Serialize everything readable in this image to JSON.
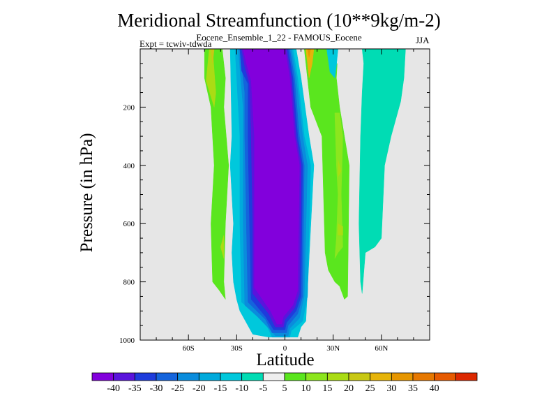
{
  "title": "Meridional Streamfunction (10**9kg/m-2)",
  "subtitle": "Eocene_Ensemble_1_22 - FAMOUS_Eocene",
  "expt_label": "Expt = tcwiv-tdwda",
  "season": "JJA",
  "colors": {
    "background_field": "#e6e6e6",
    "levels": [
      "#8200dc",
      "#5a14dc",
      "#1e3cdc",
      "#1464dc",
      "#0a8cdc",
      "#00aadc",
      "#00c8dc",
      "#00dcb4",
      "#eeeeee",
      "#5ae61e",
      "#8ce61e",
      "#aadc14",
      "#c8c814",
      "#e6b40a",
      "#e69600",
      "#e67800",
      "#e65a00",
      "#dc2800"
    ]
  },
  "chart_data": {
    "type": "contour",
    "title": "Meridional Streamfunction (10**9kg/m-2)",
    "xlabel": "Latitude",
    "ylabel": "Pressure (in hPa)",
    "xlim": [
      -90,
      90
    ],
    "ylim": [
      1000,
      0
    ],
    "xticks": [
      {
        "value": -60,
        "label": "60S"
      },
      {
        "value": -30,
        "label": "30S"
      },
      {
        "value": 0,
        "label": "0"
      },
      {
        "value": 30,
        "label": "30N"
      },
      {
        "value": 60,
        "label": "60N"
      }
    ],
    "yticks": [
      {
        "value": 200,
        "label": "200"
      },
      {
        "value": 400,
        "label": "400"
      },
      {
        "value": 600,
        "label": "600"
      },
      {
        "value": 800,
        "label": "800"
      },
      {
        "value": 1000,
        "label": "1000"
      }
    ],
    "colorbar_labels": [
      "-40",
      "-35",
      "-30",
      "-25",
      "-20",
      "-15",
      "-10",
      "-5",
      "5",
      "10",
      "15",
      "20",
      "25",
      "30",
      "35",
      "40"
    ],
    "regions": [
      {
        "name": "NH cell",
        "pts": [
          [
            4,
            968
          ],
          [
            11,
            935
          ],
          [
            14,
            850
          ],
          [
            16,
            400
          ],
          [
            12,
            300
          ],
          [
            8,
            100
          ],
          [
            5,
            0
          ],
          [
            -16,
            0
          ],
          [
            -16,
            100
          ],
          [
            -21,
            200
          ],
          [
            -24,
            400
          ],
          [
            -26,
            600
          ],
          [
            -27,
            870
          ],
          [
            -20,
            900
          ],
          [
            -11,
            953
          ],
          [
            -8,
            990
          ],
          [
            3,
            990
          ]
        ],
        "level": 6
      },
      {
        "name": "SH lobe",
        "pts": [
          [
            -39,
            0
          ],
          [
            -37,
            100
          ],
          [
            -38,
            200
          ],
          [
            -35,
            400
          ],
          [
            -37,
            600
          ],
          [
            -38,
            800
          ],
          [
            -37,
            860
          ],
          [
            -41,
            828
          ],
          [
            -45,
            800
          ],
          [
            -46,
            600
          ],
          [
            -44,
            400
          ],
          [
            -46,
            200
          ],
          [
            -50,
            100
          ],
          [
            -50,
            0
          ]
        ],
        "level": 9
      },
      {
        "name": "SH lobe",
        "pts": [
          [
            -45,
            0
          ],
          [
            -43,
            150
          ],
          [
            -44,
            200
          ],
          [
            -49,
            110
          ],
          [
            -47,
            0
          ]
        ],
        "level": 11
      },
      {
        "name": "SH lobe",
        "pts": [
          [
            -38,
            640
          ],
          [
            -38,
            720
          ],
          [
            -40,
            680
          ]
        ],
        "level": 11
      },
      {
        "name": "SH lobe",
        "pts": [
          [
            -44,
            0
          ],
          [
            -45,
            50
          ],
          [
            -46,
            0
          ]
        ],
        "level": 12
      },
      {
        "name": "SH lobe",
        "pts": [
          [
            -34,
            0
          ],
          [
            -33,
            300
          ],
          [
            -34,
            400
          ],
          [
            -32,
            600
          ],
          [
            -33,
            700
          ],
          [
            -32,
            800
          ],
          [
            -30,
            860
          ],
          [
            -28,
            900
          ],
          [
            -20,
            980
          ],
          [
            -10,
            990
          ],
          [
            8,
            990
          ],
          [
            10,
            955
          ],
          [
            13,
            935
          ],
          [
            18,
            400
          ],
          [
            15,
            300
          ],
          [
            10,
            100
          ],
          [
            7,
            0
          ]
        ],
        "level": 6
      },
      {
        "name": "SH lobe",
        "pts": [
          [
            -31,
            0
          ],
          [
            -28,
            300
          ],
          [
            -28,
            600
          ],
          [
            -27,
            870
          ],
          [
            -20,
            900
          ],
          [
            -11,
            953
          ],
          [
            -8,
            990
          ],
          [
            3,
            990
          ],
          [
            4,
            968
          ],
          [
            11,
            935
          ],
          [
            14,
            850
          ],
          [
            16,
            400
          ],
          [
            12,
            300
          ],
          [
            8,
            100
          ],
          [
            5,
            0
          ]
        ],
        "level": 5
      },
      {
        "name": "SH lobe",
        "pts": [
          [
            -29,
            0
          ],
          [
            -26,
            200
          ],
          [
            -26,
            600
          ],
          [
            -25,
            880
          ],
          [
            -17,
            920
          ],
          [
            -10,
            960
          ],
          [
            -6,
            985
          ],
          [
            2,
            985
          ],
          [
            3,
            960
          ],
          [
            9,
            925
          ],
          [
            12,
            850
          ],
          [
            14,
            400
          ],
          [
            11,
            300
          ],
          [
            7,
            100
          ],
          [
            4,
            0
          ]
        ],
        "level": 4
      },
      {
        "name": "SH lobe",
        "pts": [
          [
            -28,
            0
          ],
          [
            -25,
            150
          ],
          [
            -25,
            300
          ],
          [
            -24,
            600
          ],
          [
            -23,
            870
          ],
          [
            -12,
            930
          ],
          [
            -8,
            975
          ],
          [
            1,
            975
          ],
          [
            2,
            950
          ],
          [
            8,
            910
          ],
          [
            11,
            850
          ],
          [
            12,
            400
          ],
          [
            9,
            300
          ],
          [
            6,
            100
          ],
          [
            3,
            0
          ]
        ],
        "level": 3
      },
      {
        "name": "SH lobe",
        "pts": [
          [
            -28,
            0
          ],
          [
            -27,
            75
          ],
          [
            -23,
            120
          ],
          [
            -23,
            300
          ],
          [
            -22,
            600
          ],
          [
            -21,
            860
          ],
          [
            -12,
            920
          ],
          [
            -7,
            965
          ],
          [
            0,
            965
          ],
          [
            1,
            940
          ],
          [
            7,
            900
          ],
          [
            10,
            850
          ],
          [
            11,
            400
          ],
          [
            8,
            300
          ],
          [
            5,
            100
          ],
          [
            2,
            0
          ]
        ],
        "level": 2
      },
      {
        "name": "SH lobe",
        "pts": [
          [
            -27,
            0
          ],
          [
            -25,
            60
          ],
          [
            -22,
            120
          ],
          [
            -21,
            300
          ],
          [
            -20,
            600
          ],
          [
            -20,
            840
          ],
          [
            -10,
            910
          ],
          [
            -6,
            955
          ],
          [
            -1,
            955
          ],
          [
            0,
            930
          ],
          [
            6,
            890
          ],
          [
            9,
            840
          ],
          [
            10,
            400
          ],
          [
            7,
            300
          ],
          [
            4,
            100
          ],
          [
            1,
            0
          ]
        ],
        "level": 1
      },
      {
        "name": "SH lobe",
        "pts": [
          [
            -26,
            0
          ],
          [
            -24,
            50
          ],
          [
            -21,
            110
          ],
          [
            -19,
            300
          ],
          [
            -19,
            600
          ],
          [
            -19,
            820
          ],
          [
            -9,
            900
          ],
          [
            -5,
            945
          ],
          [
            -2,
            945
          ],
          [
            -1,
            920
          ],
          [
            5,
            880
          ],
          [
            8,
            830
          ],
          [
            9,
            400
          ],
          [
            6,
            300
          ],
          [
            3,
            100
          ],
          [
            0,
            0
          ]
        ],
        "level": 0
      },
      {
        "name": "NH lobe",
        "pts": [
          [
            12,
            0
          ],
          [
            14,
            100
          ],
          [
            16,
            200
          ],
          [
            23,
            300
          ],
          [
            24,
            500
          ],
          [
            25,
            700
          ],
          [
            27,
            760
          ],
          [
            31,
            800
          ],
          [
            34,
            815
          ],
          [
            37,
            860
          ],
          [
            39,
            850
          ],
          [
            40,
            400
          ],
          [
            34,
            200
          ],
          [
            32,
            100
          ],
          [
            33,
            0
          ]
        ],
        "level": 9
      },
      {
        "name": "NH lobe",
        "pts": [
          [
            28,
            0
          ],
          [
            29,
            40
          ],
          [
            31,
            60
          ],
          [
            33,
            45
          ],
          [
            33,
            0
          ]
        ],
        "level": 8
      },
      {
        "name": "NH lobe",
        "pts": [
          [
            26,
            0
          ],
          [
            28,
            80
          ],
          [
            31,
            100
          ],
          [
            32,
            60
          ],
          [
            33,
            0
          ]
        ],
        "level": 6
      },
      {
        "name": "NH lobe",
        "pts": [
          [
            31,
            220
          ],
          [
            32,
            400
          ],
          [
            33,
            500
          ],
          [
            32,
            650
          ],
          [
            31,
            720
          ],
          [
            33,
            700
          ],
          [
            36,
            680
          ],
          [
            35,
            500
          ],
          [
            36,
            300
          ],
          [
            34,
            220
          ]
        ],
        "level": 10
      },
      {
        "name": "NH lobe",
        "pts": [
          [
            33,
            380
          ],
          [
            33,
            440
          ],
          [
            35,
            420
          ]
        ],
        "level": 11
      },
      {
        "name": "NH lobe",
        "pts": [
          [
            33,
            600
          ],
          [
            33,
            640
          ],
          [
            36,
            640
          ],
          [
            36,
            610
          ]
        ],
        "level": 11
      },
      {
        "name": "NH lobe",
        "pts": [
          [
            13,
            0
          ],
          [
            14,
            50
          ],
          [
            15,
            100
          ],
          [
            17,
            50
          ],
          [
            18,
            0
          ]
        ],
        "level": 13
      },
      {
        "name": "NH lobe",
        "pts": [
          [
            14,
            0
          ],
          [
            15,
            30
          ],
          [
            16,
            0
          ]
        ],
        "level": 14
      },
      {
        "name": "NH lobe",
        "pts": [
          [
            48,
            0
          ],
          [
            49,
            50
          ],
          [
            48,
            150
          ],
          [
            47,
            300
          ],
          [
            46,
            600
          ],
          [
            47,
            800
          ],
          [
            48,
            840
          ],
          [
            50,
            700
          ],
          [
            56,
            680
          ],
          [
            60,
            650
          ],
          [
            62,
            400
          ],
          [
            66,
            300
          ],
          [
            72,
            180
          ],
          [
            74,
            100
          ],
          [
            75,
            0
          ]
        ],
        "level": 7
      }
    ]
  }
}
